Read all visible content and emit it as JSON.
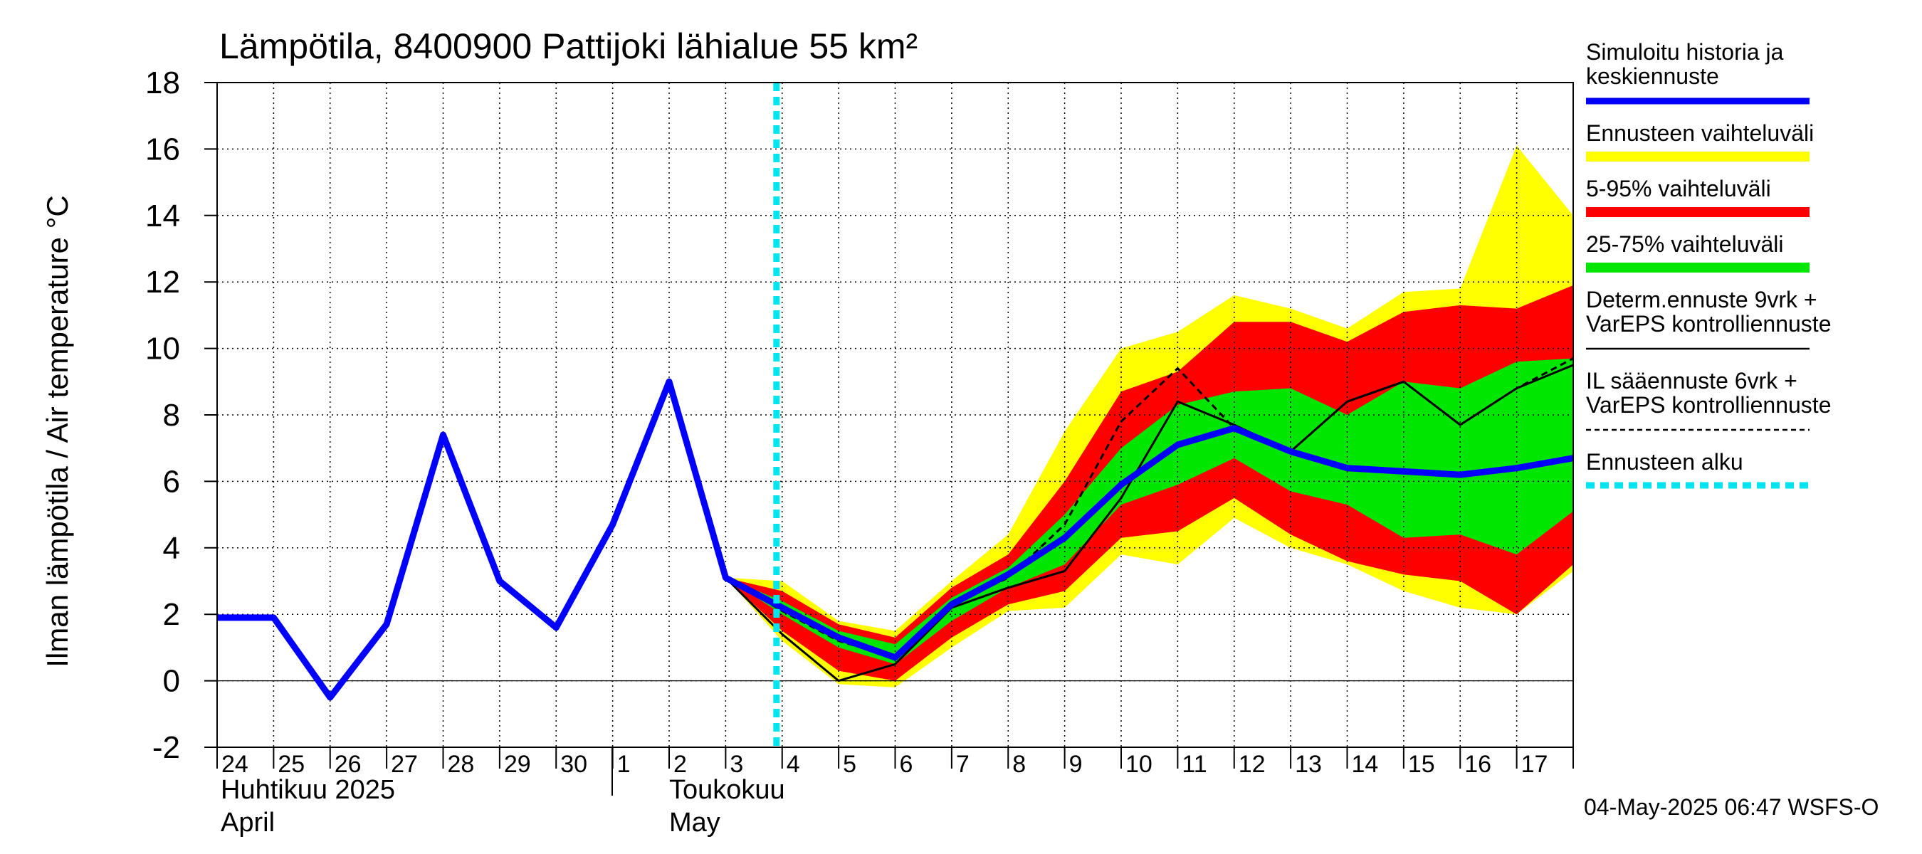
{
  "chart_data": {
    "type": "area",
    "title": "Lämpötila, 8400900 Pattijoki lähialue 55 km²",
    "ylabel": "Ilman lämpötila / Air temperature   °C",
    "ylim": [
      -2,
      18
    ],
    "yticks": [
      -2,
      0,
      2,
      4,
      6,
      8,
      10,
      12,
      14,
      16,
      18
    ],
    "grid": true,
    "x_days": [
      "24",
      "25",
      "26",
      "27",
      "28",
      "29",
      "30",
      "1",
      "2",
      "3",
      "4",
      "5",
      "6",
      "7",
      "8",
      "9",
      "10",
      "11",
      "12",
      "13",
      "14",
      "15",
      "16",
      "17"
    ],
    "month_labels": {
      "april_fi": "Huhtikuu  2025",
      "april_en": "April",
      "may_fi": "Toukokuu",
      "may_en": "May"
    },
    "forecast_start": "2025-05-04",
    "timestamp": "04-May-2025 06:47 WSFS-O",
    "legend": {
      "placement": "right",
      "entries": [
        {
          "label1": "Simuloitu historia ja",
          "label2": "keskiennuste",
          "style": "line",
          "color": "#0000ff"
        },
        {
          "label1": "Ennusteen vaihteluväli",
          "label2": "",
          "style": "band",
          "color": "#ffff00"
        },
        {
          "label1": "5-95% vaihteluväli",
          "label2": "",
          "style": "band",
          "color": "#ff0000"
        },
        {
          "label1": "25-75% vaihteluväli",
          "label2": "",
          "style": "band",
          "color": "#00e600"
        },
        {
          "label1": "Determ.ennuste 9vrk  +",
          "label2": "VarEPS kontrolliennuste",
          "style": "line",
          "color": "#000000"
        },
        {
          "label1": "IL sääennuste 6vrk  +",
          "label2": "  VarEPS kontrolliennuste",
          "style": "dashed",
          "color": "#000000"
        },
        {
          "label1": "Ennusteen alku",
          "label2": "",
          "style": "dotted",
          "color": "#00e5ee"
        }
      ]
    },
    "series": [
      {
        "name": "Ennusteen vaihteluväli",
        "color": "#ffff00",
        "x": [
          "2025-05-03",
          "2025-05-04",
          "2025-05-05",
          "2025-05-06",
          "2025-05-07",
          "2025-05-08",
          "2025-05-09",
          "2025-05-10",
          "2025-05-11",
          "2025-05-12",
          "2025-05-13",
          "2025-05-14",
          "2025-05-15",
          "2025-05-16",
          "2025-05-17",
          "2025-05-18"
        ],
        "upper": [
          3.1,
          3.0,
          1.8,
          1.5,
          3.0,
          4.4,
          7.5,
          10.0,
          10.5,
          11.6,
          11.2,
          10.6,
          11.7,
          11.8,
          16.1,
          14.0
        ],
        "lower": [
          3.1,
          1.2,
          -0.1,
          -0.2,
          1.0,
          2.1,
          2.2,
          3.8,
          3.5,
          4.9,
          4.0,
          3.5,
          2.7,
          2.2,
          2.0,
          3.3
        ]
      },
      {
        "name": "5-95% vaihteluväli",
        "color": "#ff0000",
        "x": [
          "2025-05-03",
          "2025-05-04",
          "2025-05-05",
          "2025-05-06",
          "2025-05-07",
          "2025-05-08",
          "2025-05-09",
          "2025-05-10",
          "2025-05-11",
          "2025-05-12",
          "2025-05-13",
          "2025-05-14",
          "2025-05-15",
          "2025-05-16",
          "2025-05-17",
          "2025-05-18"
        ],
        "upper": [
          3.1,
          2.7,
          1.7,
          1.3,
          2.8,
          3.8,
          6.0,
          8.7,
          9.3,
          10.8,
          10.8,
          10.2,
          11.1,
          11.3,
          11.2,
          11.9
        ],
        "lower": [
          3.1,
          1.5,
          0.3,
          0.0,
          1.3,
          2.3,
          2.7,
          4.3,
          4.5,
          5.5,
          4.4,
          3.6,
          3.2,
          3.0,
          2.0,
          3.5
        ]
      },
      {
        "name": "25-75% vaihteluväli",
        "color": "#00e600",
        "x": [
          "2025-05-03",
          "2025-05-04",
          "2025-05-05",
          "2025-05-06",
          "2025-05-07",
          "2025-05-08",
          "2025-05-09",
          "2025-05-10",
          "2025-05-11",
          "2025-05-12",
          "2025-05-13",
          "2025-05-14",
          "2025-05-15",
          "2025-05-16",
          "2025-05-17",
          "2025-05-18"
        ],
        "upper": [
          3.1,
          2.4,
          1.5,
          1.1,
          2.5,
          3.4,
          5.0,
          7.0,
          8.3,
          8.7,
          8.8,
          8.0,
          9.0,
          8.8,
          9.6,
          9.7
        ],
        "lower": [
          3.1,
          2.0,
          1.0,
          0.5,
          1.8,
          2.8,
          3.5,
          5.3,
          5.9,
          6.7,
          5.7,
          5.3,
          4.3,
          4.4,
          3.8,
          5.1
        ]
      },
      {
        "name": "Determ.ennuste 9vrk + VarEPS kontrolliennuste",
        "color": "#000000",
        "x": [
          "2025-05-03",
          "2025-05-04",
          "2025-05-05",
          "2025-05-06",
          "2025-05-07",
          "2025-05-08",
          "2025-05-09",
          "2025-05-10",
          "2025-05-11",
          "2025-05-12",
          "2025-05-13",
          "2025-05-14",
          "2025-05-15",
          "2025-05-16",
          "2025-05-17",
          "2025-05-18"
        ],
        "y": [
          3.1,
          1.4,
          0.0,
          0.5,
          2.2,
          2.8,
          3.3,
          5.5,
          8.4,
          7.7,
          6.9,
          8.4,
          9.0,
          7.7,
          8.8,
          9.5
        ]
      },
      {
        "name": "IL sääennuste 6vrk + VarEPS kontrolliennuste",
        "color": "#000000",
        "x": [
          "2025-05-03",
          "2025-05-04",
          "2025-05-05",
          "2025-05-06",
          "2025-05-07",
          "2025-05-08",
          "2025-05-09",
          "2025-05-10",
          "2025-05-11",
          "2025-05-12",
          "2025-05-13",
          "2025-05-14",
          "2025-05-15",
          "2025-05-16",
          "2025-05-17",
          "2025-05-18"
        ],
        "y": [
          3.1,
          2.1,
          1.2,
          0.7,
          2.3,
          3.1,
          4.7,
          7.8,
          9.4,
          7.6,
          6.9,
          8.4,
          9.0,
          7.7,
          8.8,
          9.7
        ]
      },
      {
        "name": "Simuloitu historia ja keskiennuste",
        "color": "#0000ff",
        "x": [
          "2025-04-24",
          "2025-04-25",
          "2025-04-26",
          "2025-04-27",
          "2025-04-28",
          "2025-04-29",
          "2025-04-30",
          "2025-05-01",
          "2025-05-02",
          "2025-05-03",
          "2025-05-04",
          "2025-05-05",
          "2025-05-06",
          "2025-05-07",
          "2025-05-08",
          "2025-05-09",
          "2025-05-10",
          "2025-05-11",
          "2025-05-12",
          "2025-05-13",
          "2025-05-14",
          "2025-05-15",
          "2025-05-16",
          "2025-05-17",
          "2025-05-18"
        ],
        "y": [
          1.9,
          1.9,
          -0.5,
          1.7,
          7.4,
          3.0,
          1.6,
          4.7,
          9.0,
          3.1,
          2.2,
          1.3,
          0.7,
          2.3,
          3.2,
          4.3,
          5.9,
          7.1,
          7.6,
          6.9,
          6.4,
          6.3,
          6.2,
          6.4,
          6.7
        ]
      }
    ]
  }
}
